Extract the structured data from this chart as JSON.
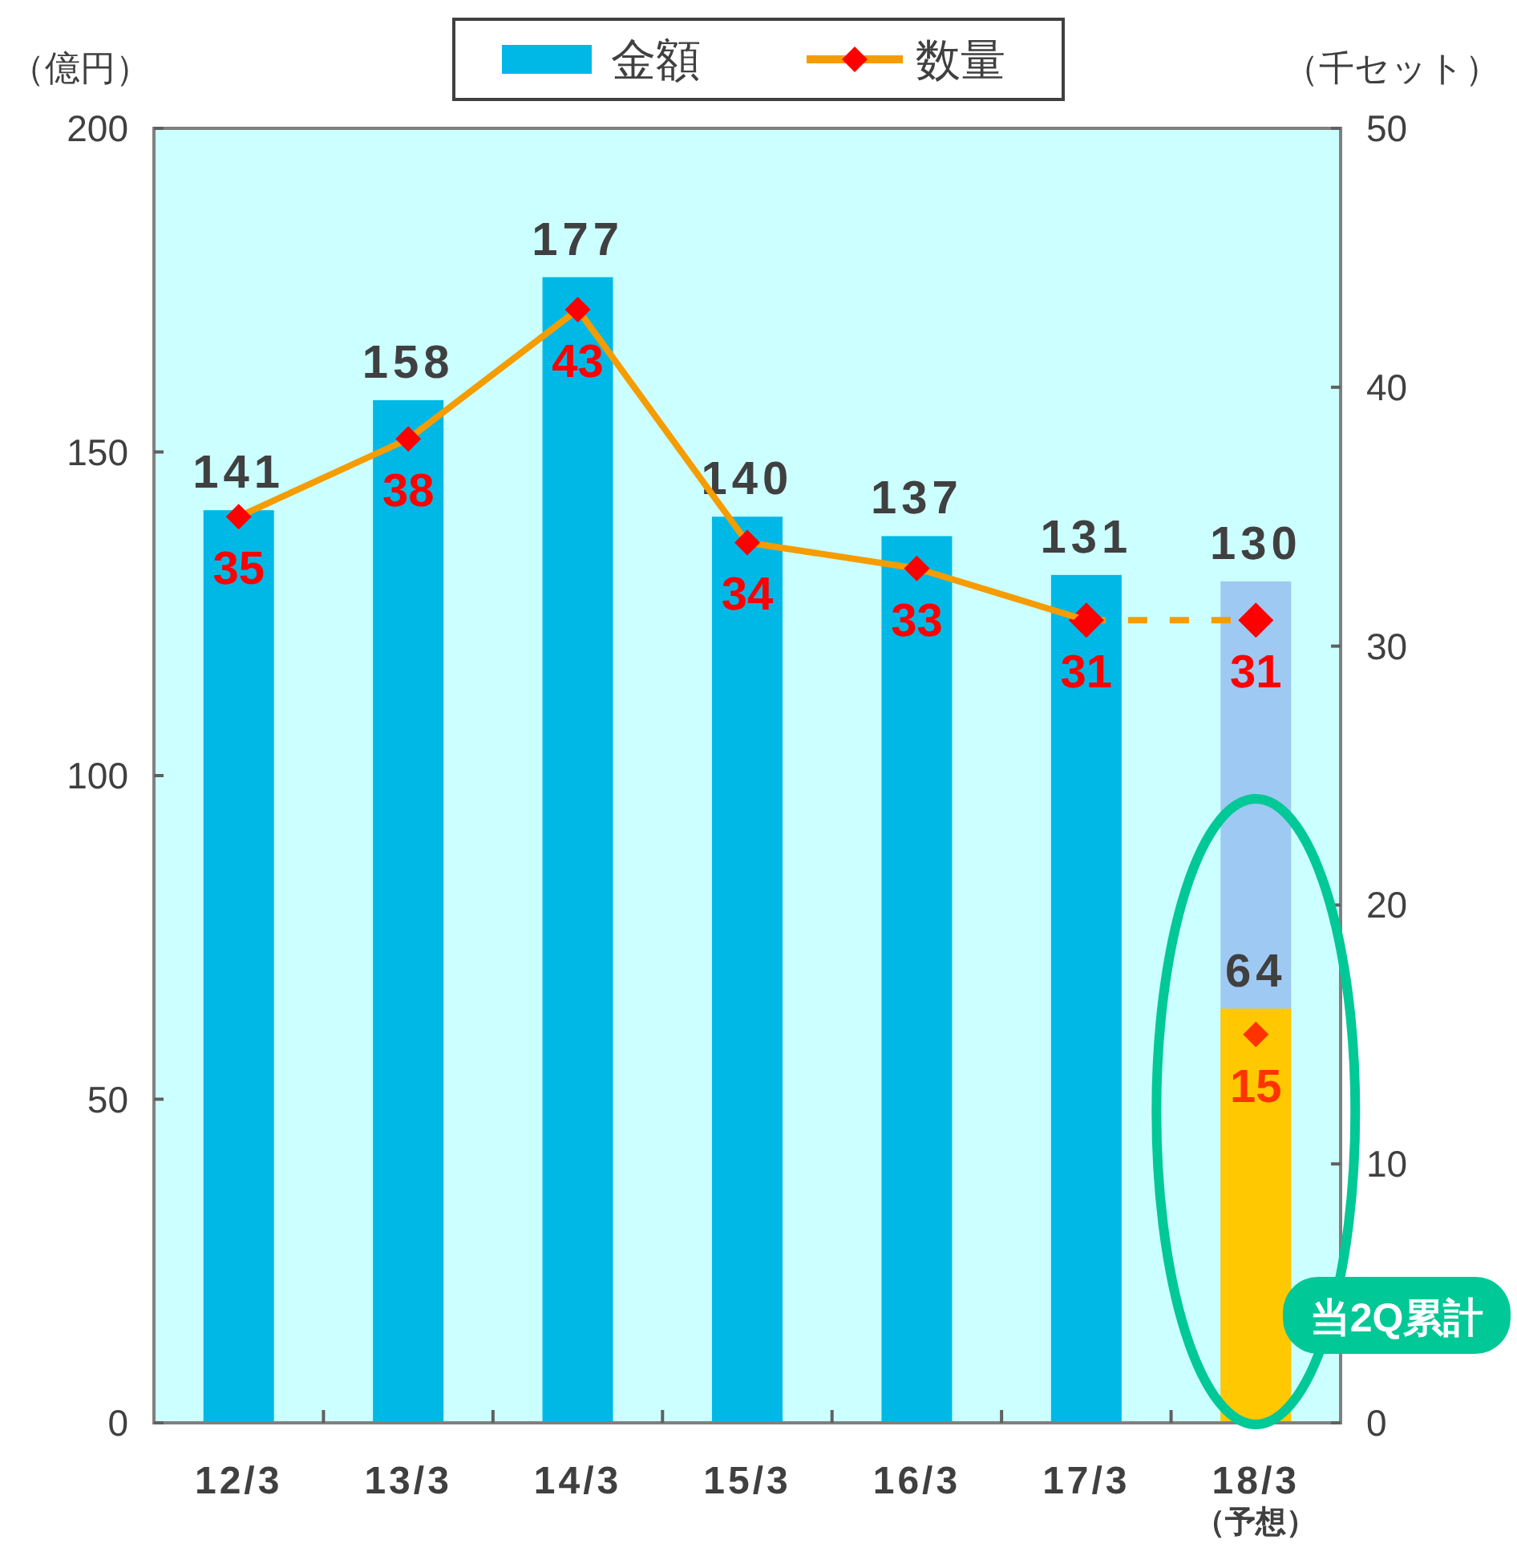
{
  "chart_data": {
    "type": "bar",
    "categories": [
      "12/3",
      "13/3",
      "14/3",
      "15/3",
      "16/3",
      "17/3",
      "18/3\n（予想）"
    ],
    "ylabel": "（億円）",
    "y2label": "（千セット）",
    "ylim": [
      0,
      200
    ],
    "yticks": [
      0,
      50,
      100,
      150,
      200
    ],
    "y2lim": [
      0,
      50
    ],
    "y2ticks": [
      0,
      10,
      20,
      30,
      40,
      50
    ],
    "legend": "top",
    "grid": false,
    "annotations": [
      "当2Q累計"
    ],
    "series": [
      {
        "name": "金額",
        "color": "#00b8e6",
        "colors": [
          "#00b8e6",
          "#00b8e6",
          "#00b8e6",
          "#00b8e6",
          "#00b8e6",
          "#00b8e6",
          "#9ec9f2"
        ],
        "values": [
          141,
          158,
          177,
          140,
          137,
          131,
          130
        ],
        "value_labels": [
          "141",
          "158",
          "177",
          "140",
          "137",
          "131",
          "130"
        ]
      },
      {
        "color": "#ffc800",
        "values": [
          null,
          null,
          null,
          null,
          null,
          null,
          64
        ],
        "value_labels": [
          null,
          null,
          null,
          null,
          null,
          null,
          "64"
        ]
      },
      {
        "type": "line",
        "axis": "y2",
        "color": "#f59c00",
        "marker": "diamond",
        "line_style": "dashed",
        "values": [
          null,
          null,
          null,
          null,
          null,
          31,
          31
        ],
        "value_labels": [
          null,
          null,
          null,
          null,
          null,
          null,
          "31"
        ]
      },
      {
        "name": "数量",
        "type": "line",
        "axis": "y2",
        "color": "#f59c00",
        "marker": "diamond",
        "line_style": "solid",
        "values": [
          35,
          38,
          43,
          34,
          33,
          31,
          null
        ],
        "value_labels": [
          "35",
          "38",
          "43",
          "34",
          "33",
          "31",
          null
        ]
      },
      {
        "type": "scatter",
        "axis": "y2",
        "color": "#ff3300",
        "marker": "diamond",
        "values": [
          null,
          null,
          null,
          null,
          null,
          null,
          15
        ],
        "value_labels": [
          null,
          null,
          null,
          null,
          null,
          null,
          "15"
        ]
      }
    ]
  }
}
